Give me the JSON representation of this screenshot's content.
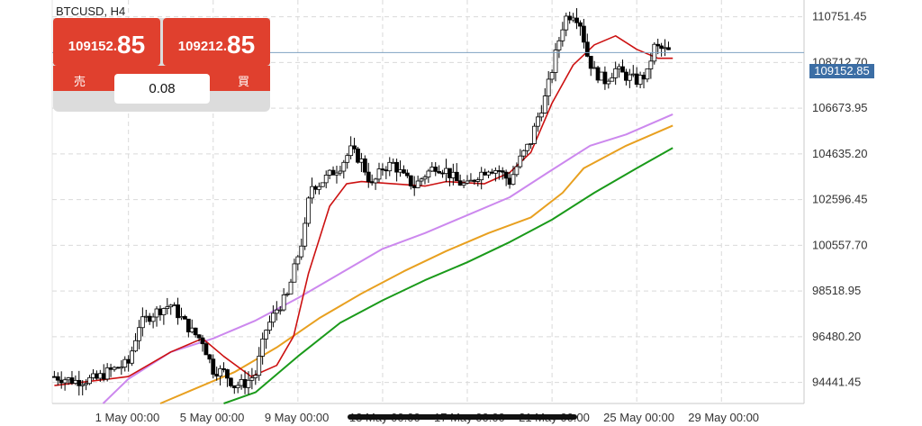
{
  "symbol": "BTCUSD, H4",
  "trade_panel": {
    "sell": {
      "price_small": "109152.",
      "price_big": "85",
      "label": "売"
    },
    "buy": {
      "price_small": "109212.",
      "price_big": "85",
      "label": "買"
    },
    "lot": "0.08"
  },
  "current_price": "109152.85",
  "colors": {
    "bull": "#ffffff",
    "bear": "#000000",
    "ma_fast": "#cc1111",
    "ma_violet": "#cc88ee",
    "ma_orange": "#e8a020",
    "ma_green": "#1a9a1a",
    "price_line": "#3c6ea5",
    "panel_red": "#e0402e"
  },
  "chart_data": {
    "type": "candlestick",
    "ylim": [
      93500,
      111500
    ],
    "y_ticks": [
      "110751.45",
      "108712.70",
      "106673.95",
      "104635.20",
      "102596.45",
      "100557.70",
      "98518.95",
      "96480.20",
      "94441.45"
    ],
    "y_tick_values": [
      110751.45,
      108712.7,
      106673.95,
      104635.2,
      102596.45,
      100557.7,
      98518.95,
      96480.2,
      94441.45
    ],
    "x_ticks": [
      "1 May 00:00",
      "5 May 00:00",
      "9 May 00:00",
      "13 May 00:00",
      "17 May 00:00",
      "21 May 00:00",
      "25 May 00:00",
      "29 May 00:00"
    ],
    "x_tick_values": [
      0,
      4,
      8,
      12,
      16,
      20,
      24,
      28
    ],
    "x_range": [
      -3.6,
      31.9
    ],
    "close_path": [
      [
        -3.5,
        94700
      ],
      [
        -2.5,
        94500
      ],
      [
        -1.5,
        94600
      ],
      [
        -1,
        94900
      ],
      [
        0,
        95300
      ],
      [
        0.5,
        97000
      ],
      [
        1,
        97400
      ],
      [
        1.5,
        97700
      ],
      [
        2,
        97900
      ],
      [
        2.5,
        97300
      ],
      [
        3,
        96700
      ],
      [
        3.5,
        96300
      ],
      [
        3.8,
        95500
      ],
      [
        4,
        95000
      ],
      [
        4.5,
        94900
      ],
      [
        5,
        94300
      ],
      [
        5.5,
        94400
      ],
      [
        6,
        94800
      ],
      [
        6.5,
        96800
      ],
      [
        7,
        97700
      ],
      [
        7.5,
        98300
      ],
      [
        8,
        100100
      ],
      [
        8.3,
        101100
      ],
      [
        8.6,
        103200
      ],
      [
        9,
        103300
      ],
      [
        9.5,
        103700
      ],
      [
        10,
        104100
      ],
      [
        10.5,
        104800
      ],
      [
        11,
        104300
      ],
      [
        11.5,
        103200
      ],
      [
        12,
        104000
      ],
      [
        12.5,
        104200
      ],
      [
        13,
        103600
      ],
      [
        13.5,
        103200
      ],
      [
        14,
        103700
      ],
      [
        14.5,
        104100
      ],
      [
        15,
        103900
      ],
      [
        15.5,
        103400
      ],
      [
        16,
        103200
      ],
      [
        16.5,
        103700
      ],
      [
        17,
        104000
      ],
      [
        17.5,
        103900
      ],
      [
        18,
        103400
      ],
      [
        18.5,
        104400
      ],
      [
        19,
        105200
      ],
      [
        19.3,
        106200
      ],
      [
        19.7,
        107200
      ],
      [
        20,
        108400
      ],
      [
        20.3,
        109600
      ],
      [
        20.6,
        110700
      ],
      [
        21,
        110900
      ],
      [
        21.3,
        110600
      ],
      [
        21.7,
        108900
      ],
      [
        22,
        108300
      ],
      [
        22.5,
        107900
      ],
      [
        23,
        108400
      ],
      [
        23.5,
        108100
      ],
      [
        24,
        107900
      ],
      [
        24.5,
        108200
      ],
      [
        24.8,
        109400
      ],
      [
        25.2,
        109300
      ],
      [
        25.6,
        109153
      ]
    ],
    "ma_fast": [
      [
        -3.5,
        94300
      ],
      [
        0,
        94700
      ],
      [
        2,
        95800
      ],
      [
        3.5,
        96400
      ],
      [
        4.5,
        95600
      ],
      [
        5.8,
        94700
      ],
      [
        7,
        95200
      ],
      [
        7.8,
        96500
      ],
      [
        8.5,
        99300
      ],
      [
        9.5,
        102300
      ],
      [
        10.3,
        103300
      ],
      [
        11,
        103400
      ],
      [
        14,
        103200
      ],
      [
        15,
        103400
      ],
      [
        16.8,
        103300
      ],
      [
        18,
        103800
      ],
      [
        19,
        104700
      ],
      [
        20,
        106900
      ],
      [
        21,
        108600
      ],
      [
        22,
        109500
      ],
      [
        23,
        109900
      ],
      [
        24,
        109300
      ],
      [
        25,
        108900
      ],
      [
        25.7,
        108900
      ]
    ],
    "ma_violet": [
      [
        -1.2,
        93500
      ],
      [
        0,
        94600
      ],
      [
        2,
        95800
      ],
      [
        4,
        96400
      ],
      [
        6,
        97200
      ],
      [
        8,
        98200
      ],
      [
        10,
        99300
      ],
      [
        12,
        100400
      ],
      [
        14,
        101100
      ],
      [
        16,
        101900
      ],
      [
        18,
        102700
      ],
      [
        19.8,
        103800
      ],
      [
        21.8,
        105000
      ],
      [
        23.5,
        105500
      ],
      [
        25.7,
        106400
      ]
    ],
    "ma_orange": [
      [
        1.5,
        93500
      ],
      [
        3,
        94100
      ],
      [
        5,
        94900
      ],
      [
        7,
        96000
      ],
      [
        9,
        97300
      ],
      [
        11,
        98400
      ],
      [
        13,
        99400
      ],
      [
        15,
        100300
      ],
      [
        17,
        101100
      ],
      [
        19,
        101800
      ],
      [
        20.5,
        102900
      ],
      [
        21.5,
        104000
      ],
      [
        23.5,
        105000
      ],
      [
        25.7,
        105900
      ]
    ],
    "ma_green": [
      [
        4.5,
        93500
      ],
      [
        6,
        94000
      ],
      [
        8,
        95600
      ],
      [
        10,
        97100
      ],
      [
        12,
        98100
      ],
      [
        14,
        99000
      ],
      [
        16,
        99800
      ],
      [
        18,
        100700
      ],
      [
        20,
        101700
      ],
      [
        22,
        102900
      ],
      [
        24,
        104000
      ],
      [
        25.7,
        104900
      ]
    ]
  }
}
